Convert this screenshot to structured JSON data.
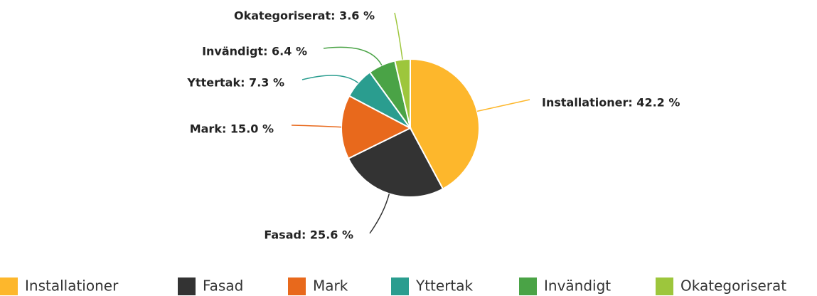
{
  "chart_data": {
    "type": "pie",
    "categories": [
      "Installationer",
      "Fasad",
      "Mark",
      "Yttertak",
      "Invändigt",
      "Okategoriserat"
    ],
    "values": [
      42.2,
      25.6,
      15.0,
      7.3,
      6.4,
      3.6
    ],
    "value_labels": [
      "Installationer: 42.2 %",
      "Fasad: 25.6 %",
      "Mark: 15.0 %",
      "Yttertak: 7.3 %",
      "Invändigt: 6.4 %",
      "Okategoriserat: 3.6 %"
    ],
    "colors": [
      "#fdb72c",
      "#333333",
      "#e8691c",
      "#2a9d8f",
      "#4aa346",
      "#9dc63c"
    ],
    "legend": "bottom"
  }
}
